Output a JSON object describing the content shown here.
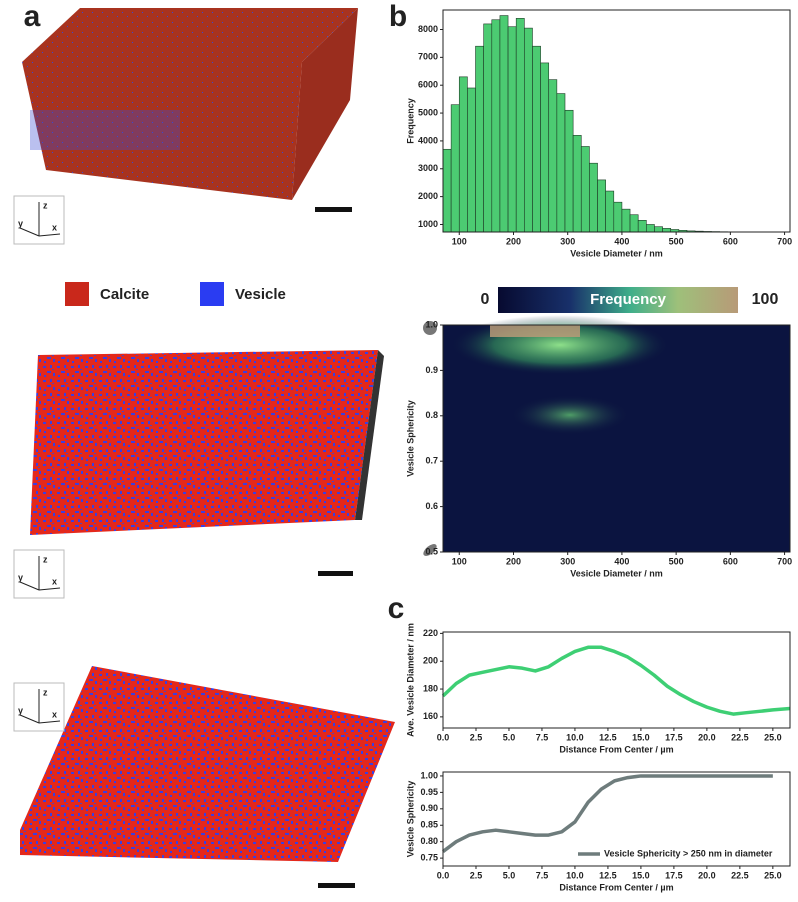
{
  "panel_labels": [
    "a",
    "b",
    "c"
  ],
  "materials": [
    {
      "name": "Calcite",
      "color": "#c9281b"
    },
    {
      "name": "Vesicle",
      "color": "#2a3cf2"
    }
  ],
  "axis_letters": [
    "z",
    "y",
    "x"
  ],
  "colorbar": {
    "label": "Frequency",
    "min": 0,
    "max": 100
  },
  "chart_data": [
    {
      "type": "histogram",
      "xlabel": "Vesicle Diameter / nm",
      "ylabel": "Frequency",
      "color": "#4ccb72",
      "bins": [
        70,
        85,
        100,
        115,
        130,
        145,
        160,
        175,
        190,
        205,
        220,
        235,
        250,
        265,
        280,
        295,
        310,
        325,
        340,
        355,
        370,
        385,
        400,
        415,
        430,
        445,
        460,
        475,
        490,
        505,
        520,
        535,
        550,
        565,
        580,
        595,
        610
      ],
      "values": [
        3700,
        5300,
        6300,
        5900,
        7400,
        8200,
        8350,
        8500,
        8100,
        8400,
        8050,
        7400,
        6800,
        6200,
        5700,
        5100,
        4200,
        3800,
        3200,
        2600,
        2200,
        1800,
        1550,
        1350,
        1150,
        1000,
        920,
        860,
        820,
        790,
        770,
        760,
        750,
        745,
        740,
        735
      ],
      "xlim": [
        70,
        710
      ],
      "xticks": [
        100,
        200,
        300,
        400,
        500,
        600,
        700
      ],
      "ylim": [
        730,
        8700
      ],
      "yticks": [
        1000,
        2000,
        3000,
        4000,
        5000,
        6000,
        7000,
        8000
      ]
    },
    {
      "type": "heatmap",
      "xlabel": "Vesicle Diameter / nm",
      "ylabel": "Vesicle Sphericity",
      "xlim": [
        70,
        710
      ],
      "xticks": [
        100,
        200,
        300,
        400,
        500,
        600,
        700
      ],
      "ylim": [
        0.5,
        1.0
      ],
      "yticks": [
        0.5,
        0.6,
        0.7,
        0.8,
        0.9,
        {
          "value": 1,
          "label": "1.0"
        }
      ]
    },
    {
      "type": "line",
      "xlabel": "Distance From Center / µm",
      "ylabel": "Ave. Vesicle Diameter / nm",
      "x": [
        0,
        1,
        2,
        3,
        4,
        5,
        6,
        7,
        8,
        9,
        10,
        11,
        12,
        13,
        14,
        15,
        16,
        17,
        18,
        19,
        20,
        21,
        22,
        23,
        24,
        25,
        26.3
      ],
      "series": [
        {
          "color": "#3ecf74",
          "values": [
            175,
            184,
            190,
            192,
            194,
            196,
            195,
            193,
            196,
            202,
            207,
            210,
            210,
            207,
            203,
            197,
            190,
            182,
            176,
            171,
            167,
            164,
            162,
            163,
            164,
            165,
            166
          ]
        }
      ],
      "xlim": [
        0,
        26.3
      ],
      "xticks": [
        {
          "value": 0,
          "label": "0.0"
        },
        2.5,
        {
          "value": 5,
          "label": "5.0"
        },
        7.5,
        {
          "value": 10,
          "label": "10.0"
        },
        12.5,
        {
          "value": 15,
          "label": "15.0"
        },
        17.5,
        {
          "value": 20,
          "label": "20.0"
        },
        22.5,
        {
          "value": 25,
          "label": "25.0"
        }
      ],
      "ylim": [
        152,
        221
      ],
      "yticks": [
        160,
        180,
        200,
        220
      ]
    },
    {
      "type": "line",
      "xlabel": "Distance From Center / µm",
      "ylabel": "Vesicle Sphericity",
      "legend": "lower right",
      "x": [
        0,
        1,
        2,
        3,
        4,
        5,
        6,
        7,
        8,
        9,
        10,
        11,
        12,
        13,
        14,
        15,
        16,
        17,
        18,
        19,
        20,
        21,
        22,
        23,
        24,
        25
      ],
      "series": [
        {
          "name": "Vesicle Sphericity > 250 nm in diameter",
          "color": "#6e7c7c",
          "values": [
            0.77,
            0.8,
            0.82,
            0.83,
            0.835,
            0.83,
            0.825,
            0.82,
            0.82,
            0.83,
            0.86,
            0.92,
            0.96,
            0.985,
            0.995,
            1,
            1,
            1,
            1,
            1,
            1,
            1,
            1,
            1,
            1,
            1
          ]
        }
      ],
      "xlim": [
        0,
        26.3
      ],
      "xticks": [
        {
          "value": 0,
          "label": "0.0"
        },
        2.5,
        {
          "value": 5,
          "label": "5.0"
        },
        7.5,
        {
          "value": 10,
          "label": "10.0"
        },
        12.5,
        {
          "value": 15,
          "label": "15.0"
        },
        17.5,
        {
          "value": 20,
          "label": "20.0"
        },
        22.5,
        {
          "value": 25,
          "label": "25.0"
        }
      ],
      "ylim": [
        0.726,
        1.012
      ],
      "yticks": [
        0.75,
        {
          "value": 0.8,
          "label": "0.80"
        },
        0.85,
        {
          "value": 0.9,
          "label": "0.90"
        },
        0.95,
        {
          "value": 1,
          "label": "1.00"
        }
      ]
    }
  ]
}
